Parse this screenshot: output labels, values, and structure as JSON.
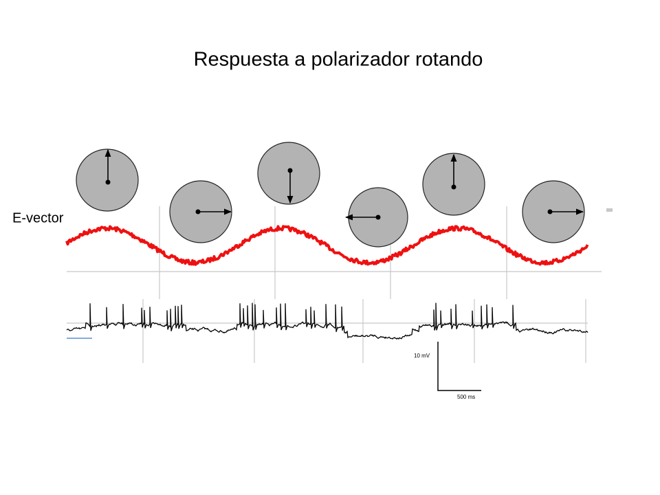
{
  "title": "Respuesta a polarizador rotando",
  "labels": {
    "e_vector": "E-vector"
  },
  "scale_bar": {
    "voltage": "10 mV",
    "time": "500 ms"
  }
}
